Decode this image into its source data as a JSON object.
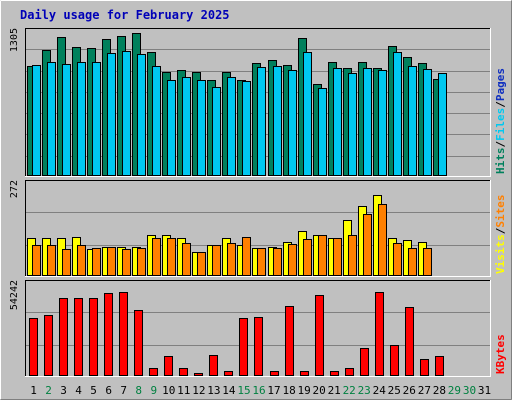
{
  "title": "Daily usage for February 2025",
  "colors": {
    "background": "#c0c0c0",
    "frame_light": "#ffffff",
    "frame_dark": "#7f7f7f",
    "grid": "#808080",
    "hits": "#00805c",
    "files": "#00c8f0",
    "pages": "#1030c0",
    "visits": "#ffff00",
    "sites": "#ff8000",
    "kbytes": "#ff0000",
    "weekday_label": "#000000",
    "weekend_label": "#008040",
    "slash": "#000000"
  },
  "chart_data": [
    {
      "type": "bar",
      "panel": "hits-files-pages",
      "categories": [
        "1",
        "2",
        "3",
        "4",
        "5",
        "6",
        "7",
        "8",
        "9",
        "10",
        "11",
        "12",
        "13",
        "14",
        "15",
        "16",
        "17",
        "18",
        "19",
        "20",
        "21",
        "22",
        "23",
        "24",
        "25",
        "26",
        "27",
        "28",
        "29",
        "30",
        "31"
      ],
      "ymax_label": "1305",
      "ylim": [
        0,
        1305
      ],
      "grid": true,
      "right_label": [
        {
          "text": "Hits",
          "color": "#00805c"
        },
        {
          "text": "/",
          "color": "#000000"
        },
        {
          "text": "Files",
          "color": "#00c8f0"
        },
        {
          "text": "/",
          "color": "#000000"
        },
        {
          "text": "Pages",
          "color": "#1030c0"
        }
      ],
      "series": [
        {
          "name": "Hits",
          "color": "#00805c",
          "values": [
            1005,
            1150,
            1270,
            1180,
            1165,
            1250,
            1280,
            1305,
            1130,
            950,
            970,
            950,
            880,
            945,
            880,
            1030,
            1060,
            1010,
            1260,
            840,
            1040,
            990,
            1040,
            990,
            1190,
            1085,
            1030,
            885,
            0,
            0,
            0
          ]
        },
        {
          "name": "Files",
          "color": "#00c8f0",
          "values": [
            1010,
            1040,
            1020,
            1040,
            1040,
            1125,
            1140,
            1110,
            1000,
            880,
            900,
            875,
            815,
            900,
            870,
            995,
            1000,
            970,
            1130,
            800,
            985,
            940,
            990,
            965,
            1135,
            1000,
            975,
            940,
            0,
            0,
            0
          ]
        },
        {
          "name": "Pages",
          "color": "#1030c0",
          "values": [
            0,
            0,
            0,
            0,
            0,
            0,
            0,
            0,
            0,
            0,
            0,
            0,
            0,
            0,
            0,
            0,
            0,
            0,
            0,
            0,
            0,
            0,
            0,
            0,
            0,
            0,
            0,
            0,
            0,
            0,
            0
          ]
        }
      ]
    },
    {
      "type": "bar",
      "panel": "visits-sites",
      "categories": [
        "1",
        "2",
        "3",
        "4",
        "5",
        "6",
        "7",
        "8",
        "9",
        "10",
        "11",
        "12",
        "13",
        "14",
        "15",
        "16",
        "17",
        "18",
        "19",
        "20",
        "21",
        "22",
        "23",
        "24",
        "25",
        "26",
        "27",
        "28",
        "29",
        "30",
        "31"
      ],
      "ymax_label": "272",
      "ylim": [
        0,
        272
      ],
      "grid": true,
      "right_label": [
        {
          "text": "Visits",
          "color": "#ffff00"
        },
        {
          "text": "/",
          "color": "#000000"
        },
        {
          "text": "Sites",
          "color": "#ff8000"
        }
      ],
      "series": [
        {
          "name": "Visits",
          "color": "#ffff00",
          "values": [
            113,
            114,
            113,
            117,
            81,
            87,
            87,
            87,
            122,
            122,
            114,
            73,
            92,
            113,
            92,
            84,
            87,
            101,
            135,
            124,
            113,
            166,
            208,
            243,
            113,
            109,
            103,
            0,
            0,
            0,
            0
          ]
        },
        {
          "name": "Sites",
          "color": "#ff8000",
          "values": [
            92,
            92,
            81,
            92,
            84,
            87,
            81,
            84,
            114,
            114,
            100,
            71,
            92,
            100,
            117,
            84,
            84,
            95,
            111,
            122,
            113,
            124,
            184,
            216,
            98,
            84,
            84,
            0,
            0,
            0,
            0
          ]
        }
      ]
    },
    {
      "type": "bar",
      "panel": "kbytes",
      "categories": [
        "1",
        "2",
        "3",
        "4",
        "5",
        "6",
        "7",
        "8",
        "9",
        "10",
        "11",
        "12",
        "13",
        "14",
        "15",
        "16",
        "17",
        "18",
        "19",
        "20",
        "21",
        "22",
        "23",
        "24",
        "25",
        "26",
        "27",
        "28",
        "29",
        "30",
        "31"
      ],
      "ymax_label": "54242",
      "ylim": [
        0,
        54242
      ],
      "grid": true,
      "right_label": [
        {
          "text": "KBytes",
          "color": "#ff0000"
        }
      ],
      "series": [
        {
          "name": "KBytes",
          "color": "#ff0000",
          "values": [
            34300,
            36100,
            46700,
            46700,
            46700,
            49700,
            50300,
            39100,
            5000,
            11800,
            5000,
            1800,
            12600,
            2700,
            34300,
            34900,
            2700,
            42000,
            2700,
            48400,
            2700,
            4500,
            16800,
            50300,
            18200,
            41400,
            10000,
            12000,
            0,
            0,
            0
          ]
        }
      ]
    }
  ],
  "days": [
    {
      "label": "1",
      "weekend": false
    },
    {
      "label": "2",
      "weekend": true
    },
    {
      "label": "3",
      "weekend": false
    },
    {
      "label": "4",
      "weekend": false
    },
    {
      "label": "5",
      "weekend": false
    },
    {
      "label": "6",
      "weekend": false
    },
    {
      "label": "7",
      "weekend": false
    },
    {
      "label": "8",
      "weekend": true
    },
    {
      "label": "9",
      "weekend": true
    },
    {
      "label": "10",
      "weekend": false
    },
    {
      "label": "11",
      "weekend": false
    },
    {
      "label": "12",
      "weekend": false
    },
    {
      "label": "13",
      "weekend": false
    },
    {
      "label": "14",
      "weekend": false
    },
    {
      "label": "15",
      "weekend": true
    },
    {
      "label": "16",
      "weekend": true
    },
    {
      "label": "17",
      "weekend": false
    },
    {
      "label": "18",
      "weekend": false
    },
    {
      "label": "19",
      "weekend": false
    },
    {
      "label": "20",
      "weekend": false
    },
    {
      "label": "21",
      "weekend": false
    },
    {
      "label": "22",
      "weekend": true
    },
    {
      "label": "23",
      "weekend": true
    },
    {
      "label": "24",
      "weekend": false
    },
    {
      "label": "25",
      "weekend": false
    },
    {
      "label": "26",
      "weekend": false
    },
    {
      "label": "27",
      "weekend": false
    },
    {
      "label": "28",
      "weekend": false
    },
    {
      "label": "29",
      "weekend": true
    },
    {
      "label": "30",
      "weekend": true
    },
    {
      "label": "31",
      "weekend": false
    }
  ]
}
